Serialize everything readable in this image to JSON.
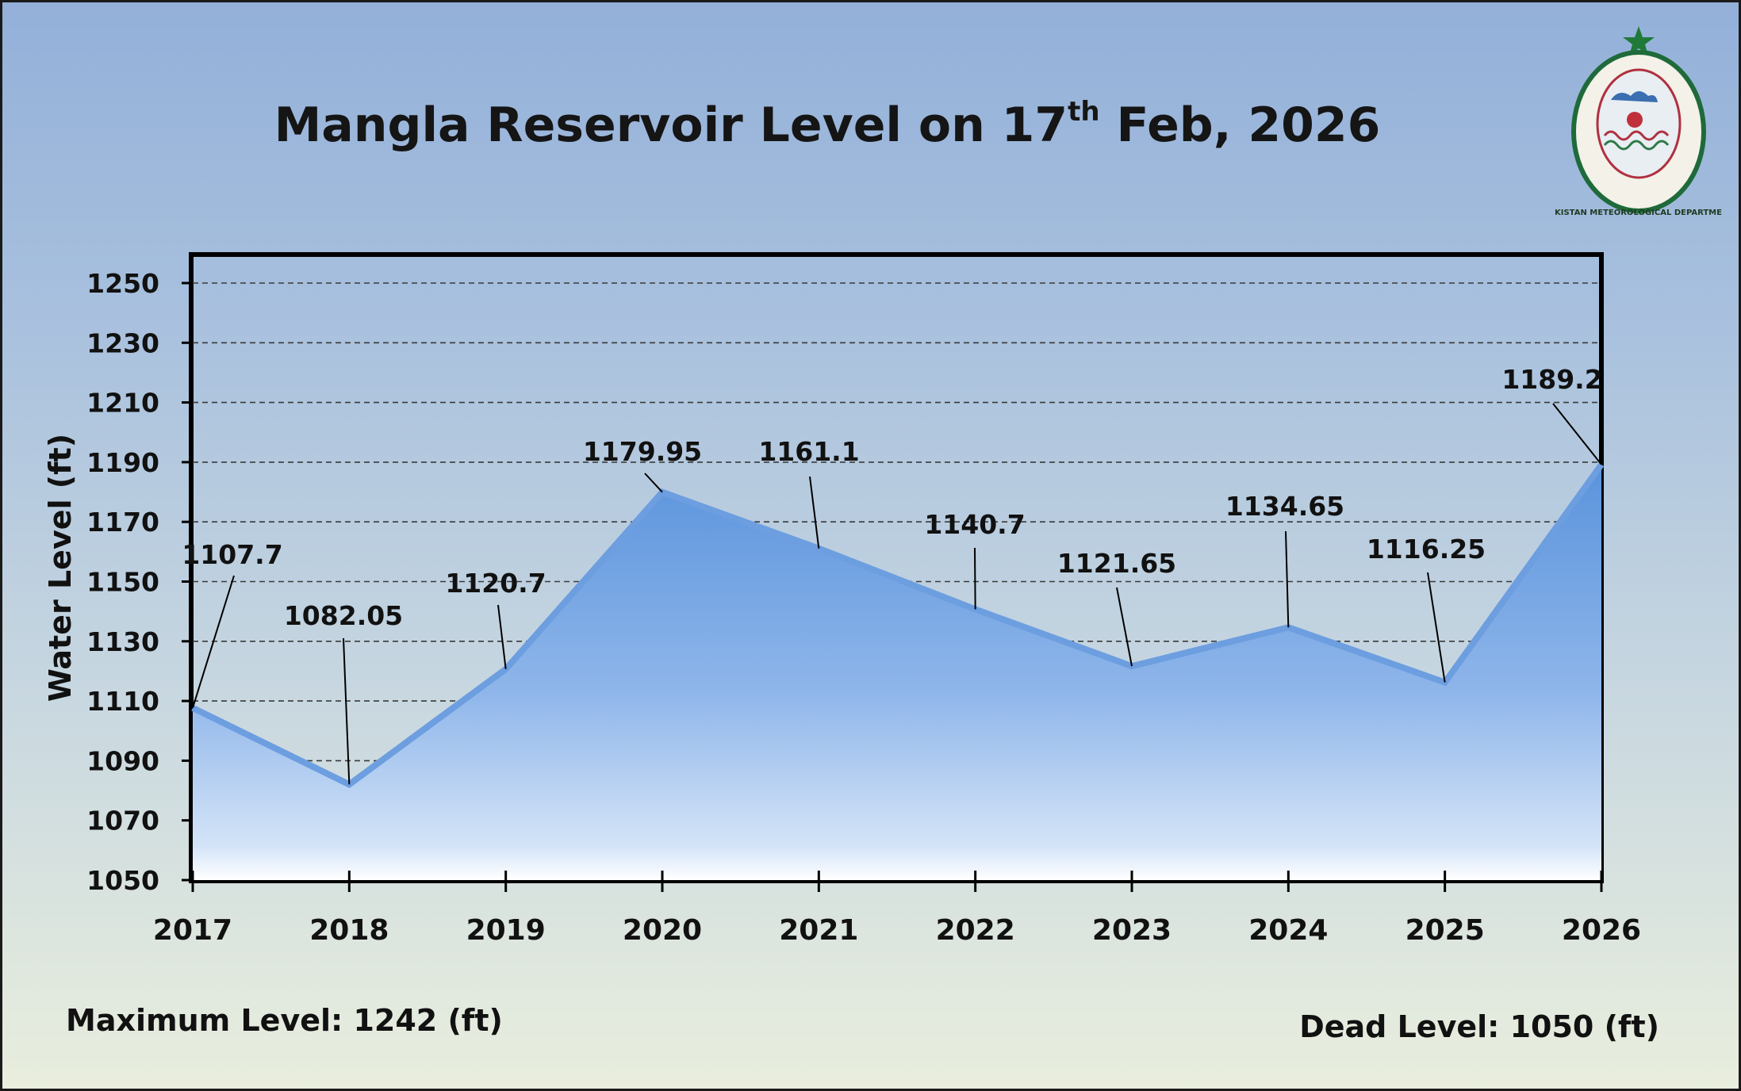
{
  "page": {
    "title_main": "Mangla Reservoir Level on 17",
    "title_sup": "th",
    "title_end": " Feb, 2026",
    "max_level_text": "Maximum Level: 1242 (ft)",
    "dead_level_text": "Dead Level: 1050 (ft)",
    "logo_text": "PAKISTAN METEOROLOGICAL DEPARTMENT"
  },
  "colors": {
    "area_top": "#5a93dc",
    "area_bottom": "#ffffff",
    "line": "#6c9ee0",
    "grid": "#3a3a3a",
    "frame": "#000000"
  },
  "chart_data": {
    "type": "area",
    "categories": [
      "2017",
      "2018",
      "2019",
      "2020",
      "2021",
      "2022",
      "2023",
      "2024",
      "2025",
      "2026"
    ],
    "series": [
      {
        "values": [
          1107.7,
          1082.05,
          1120.7,
          1179.95,
          1161.1,
          1140.7,
          1121.65,
          1134.65,
          1116.25,
          1189.2
        ]
      }
    ],
    "data_labels": [
      "1107.7",
      "1082.05",
      "1120.7",
      "1179.95",
      "1161.1",
      "1140.7",
      "1121.65",
      "1134.65",
      "1116.25",
      "1189.2"
    ],
    "ylabel": "Water Level (ft)",
    "ylim": [
      1050,
      1250
    ],
    "yticks": [
      1050,
      1070,
      1090,
      1110,
      1130,
      1150,
      1170,
      1190,
      1210,
      1230,
      1250
    ],
    "grid": true,
    "legend": "none"
  }
}
